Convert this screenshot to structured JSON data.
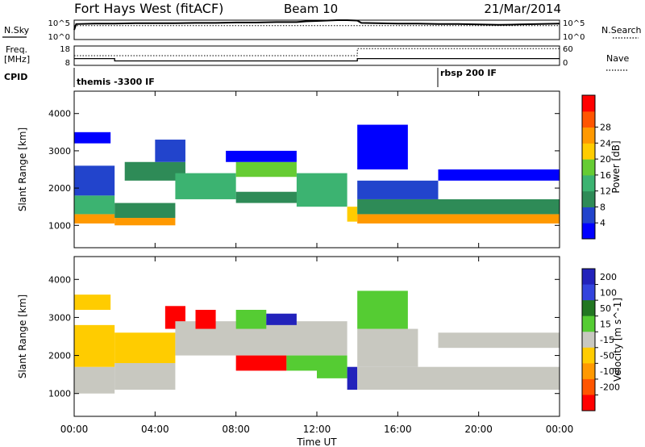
{
  "header": {
    "station": "Fort Hays West (fitACF)",
    "beam": "Beam 10",
    "date": "21/Mar/2014"
  },
  "top_panels": {
    "nsky_label": "N.Sky",
    "nsky_tick_hi": "10^5",
    "nsky_tick_lo": "10^0",
    "nsearch_label": "N.Search",
    "nsearch_tick_hi": "10^5",
    "nsearch_tick_lo": "10^0",
    "freq_label": "Freq.",
    "freq_unit": "[MHz]",
    "freq_tick_hi": "18",
    "freq_tick_lo": "8",
    "nave_label": "Nave",
    "nave_tick_hi": "60",
    "nave_tick_lo": "0",
    "cpid_label": "CPID",
    "cpid_1": "themis -3300 IF",
    "cpid_2": "rbsp 200 IF"
  },
  "colors": {
    "power": [
      "#0000ff",
      "#2244cc",
      "#2e8b57",
      "#3cb371",
      "#66cc33",
      "#ffcc00",
      "#ff9900",
      "#ff5500",
      "#ff0000"
    ],
    "velocity": [
      "#2222bb",
      "#3344dd",
      "#227722",
      "#55cc33",
      "#c8c8c0",
      "#ffcc00",
      "#ff9900",
      "#ff5500",
      "#ff0000"
    ]
  },
  "chart_data": [
    {
      "type": "heatmap",
      "name": "power",
      "ylabel": "Slant Range [km]",
      "xlim": [
        0,
        24
      ],
      "ylim": [
        400,
        4600
      ],
      "yticks": [
        "1000",
        "2000",
        "3000",
        "4000"
      ],
      "colorbar_label": "Power [dB]",
      "colorbar_ticks": [
        "4",
        "8",
        "12",
        "16",
        "20",
        "24",
        "28"
      ],
      "bands": [
        {
          "t0": 0.0,
          "t1": 2.0,
          "r0": 1050,
          "r1": 1300,
          "v": 28
        },
        {
          "t0": 0.0,
          "t1": 2.0,
          "r0": 1300,
          "r1": 1800,
          "v": 16
        },
        {
          "t0": 0.0,
          "t1": 2.0,
          "r0": 1800,
          "r1": 2600,
          "v": 8
        },
        {
          "t0": 0.0,
          "t1": 1.8,
          "r0": 3200,
          "r1": 3500,
          "v": 4
        },
        {
          "t0": 2.0,
          "t1": 5.0,
          "r0": 1000,
          "r1": 1200,
          "v": 28
        },
        {
          "t0": 2.0,
          "t1": 5.0,
          "r0": 1200,
          "r1": 1600,
          "v": 12
        },
        {
          "t0": 2.5,
          "t1": 5.5,
          "r0": 2200,
          "r1": 2700,
          "v": 12
        },
        {
          "t0": 4.0,
          "t1": 5.5,
          "r0": 2700,
          "r1": 3300,
          "v": 8
        },
        {
          "t0": 5.0,
          "t1": 8.0,
          "r0": 1700,
          "r1": 2400,
          "v": 16
        },
        {
          "t0": 8.0,
          "t1": 11.0,
          "r0": 2300,
          "r1": 2700,
          "v": 20
        },
        {
          "t0": 7.5,
          "t1": 11.0,
          "r0": 2700,
          "r1": 3000,
          "v": 4
        },
        {
          "t0": 8.0,
          "t1": 12.0,
          "r0": 1600,
          "r1": 1900,
          "v": 12
        },
        {
          "t0": 11.0,
          "t1": 13.5,
          "r0": 1500,
          "r1": 2400,
          "v": 16
        },
        {
          "t0": 13.5,
          "t1": 14.0,
          "r0": 1100,
          "r1": 1500,
          "v": 24
        },
        {
          "t0": 14.0,
          "t1": 24.0,
          "r0": 1050,
          "r1": 1300,
          "v": 28
        },
        {
          "t0": 14.0,
          "t1": 24.0,
          "r0": 1300,
          "r1": 1700,
          "v": 12
        },
        {
          "t0": 14.0,
          "t1": 18.0,
          "r0": 1700,
          "r1": 2200,
          "v": 8
        },
        {
          "t0": 14.0,
          "t1": 16.5,
          "r0": 2500,
          "r1": 3700,
          "v": 4
        },
        {
          "t0": 18.0,
          "t1": 24.0,
          "r0": 2200,
          "r1": 2500,
          "v": 4
        }
      ]
    },
    {
      "type": "heatmap",
      "name": "velocity",
      "ylabel": "Slant Range [km]",
      "xlabel": "Time UT",
      "xlim": [
        0,
        24
      ],
      "ylim": [
        400,
        4600
      ],
      "xticks": [
        "00:00",
        "04:00",
        "08:00",
        "12:00",
        "16:00",
        "20:00",
        "00:00"
      ],
      "yticks": [
        "1000",
        "2000",
        "3000",
        "4000"
      ],
      "colorbar_label": "Velocity [m s^-1]",
      "colorbar_ticks": [
        "200",
        "100",
        "50",
        "15",
        "-15",
        "-50",
        "-100",
        "-200"
      ],
      "bands": [
        {
          "t0": 0.0,
          "t1": 2.0,
          "r0": 1000,
          "r1": 1700,
          "v": -15
        },
        {
          "t0": 0.0,
          "t1": 2.0,
          "r0": 1700,
          "r1": 2800,
          "v": -70
        },
        {
          "t0": 0.0,
          "t1": 1.8,
          "r0": 3200,
          "r1": 3600,
          "v": -70
        },
        {
          "t0": 2.0,
          "t1": 5.0,
          "r0": 1100,
          "r1": 1800,
          "v": -15
        },
        {
          "t0": 2.0,
          "t1": 5.0,
          "r0": 1800,
          "r1": 2600,
          "v": -70
        },
        {
          "t0": 4.5,
          "t1": 5.5,
          "r0": 2700,
          "r1": 3300,
          "v": -200
        },
        {
          "t0": 5.0,
          "t1": 13.5,
          "r0": 2000,
          "r1": 2900,
          "v": -15
        },
        {
          "t0": 6.0,
          "t1": 7.0,
          "r0": 2700,
          "r1": 3200,
          "v": -200
        },
        {
          "t0": 8.0,
          "t1": 9.5,
          "r0": 2700,
          "r1": 3200,
          "v": 50
        },
        {
          "t0": 9.5,
          "t1": 11.0,
          "r0": 2800,
          "r1": 3100,
          "v": 200
        },
        {
          "t0": 8.0,
          "t1": 10.5,
          "r0": 1600,
          "r1": 2000,
          "v": -200
        },
        {
          "t0": 10.5,
          "t1": 12.0,
          "r0": 1600,
          "r1": 2000,
          "v": 50
        },
        {
          "t0": 12.0,
          "t1": 13.5,
          "r0": 1400,
          "r1": 2000,
          "v": 50
        },
        {
          "t0": 13.5,
          "t1": 14.0,
          "r0": 1100,
          "r1": 1700,
          "v": 200
        },
        {
          "t0": 14.0,
          "t1": 24.0,
          "r0": 1100,
          "r1": 1700,
          "v": -15
        },
        {
          "t0": 14.0,
          "t1": 17.0,
          "r0": 1700,
          "r1": 2700,
          "v": -15
        },
        {
          "t0": 14.0,
          "t1": 16.5,
          "r0": 2700,
          "r1": 3700,
          "v": 50
        },
        {
          "t0": 18.0,
          "t1": 24.0,
          "r0": 2200,
          "r1": 2600,
          "v": -15
        }
      ]
    },
    {
      "type": "line",
      "name": "noise",
      "x": [
        0,
        0.1,
        1,
        2,
        3,
        4,
        5,
        6,
        7,
        8,
        9,
        10,
        11,
        11.5,
        12,
        12.5,
        13,
        13.5,
        14,
        14.2,
        15,
        16,
        17,
        18,
        19,
        20,
        21,
        22,
        23,
        24
      ],
      "nsky": [
        2.5,
        4.0,
        4.1,
        4.1,
        4.2,
        4.2,
        4.2,
        4.3,
        4.3,
        4.4,
        4.4,
        4.5,
        4.5,
        4.7,
        4.8,
        4.9,
        5.0,
        5.0,
        4.9,
        4.3,
        4.2,
        4.1,
        4.1,
        4.0,
        4.0,
        3.9,
        3.8,
        3.9,
        4.0,
        4.1
      ],
      "nsearch": [
        3.6,
        3.6,
        3.6,
        3.6,
        3.6,
        3.6,
        3.6,
        3.6,
        3.6,
        3.6,
        3.6,
        3.6,
        3.6,
        3.6,
        3.6,
        3.6,
        3.6,
        3.6,
        3.6,
        3.6,
        3.6,
        3.6,
        3.6,
        3.6,
        3.6,
        3.6,
        3.6,
        3.6,
        3.6,
        3.6
      ]
    },
    {
      "type": "line",
      "name": "freq_nave",
      "x": [
        0,
        2,
        2,
        14,
        14,
        18,
        18,
        24
      ],
      "freq": [
        11.5,
        11.5,
        10.3,
        10.3,
        11.5,
        11.5,
        11.5,
        11.5
      ],
      "nave": [
        30,
        30,
        30,
        30,
        52,
        52,
        52,
        52
      ]
    }
  ]
}
